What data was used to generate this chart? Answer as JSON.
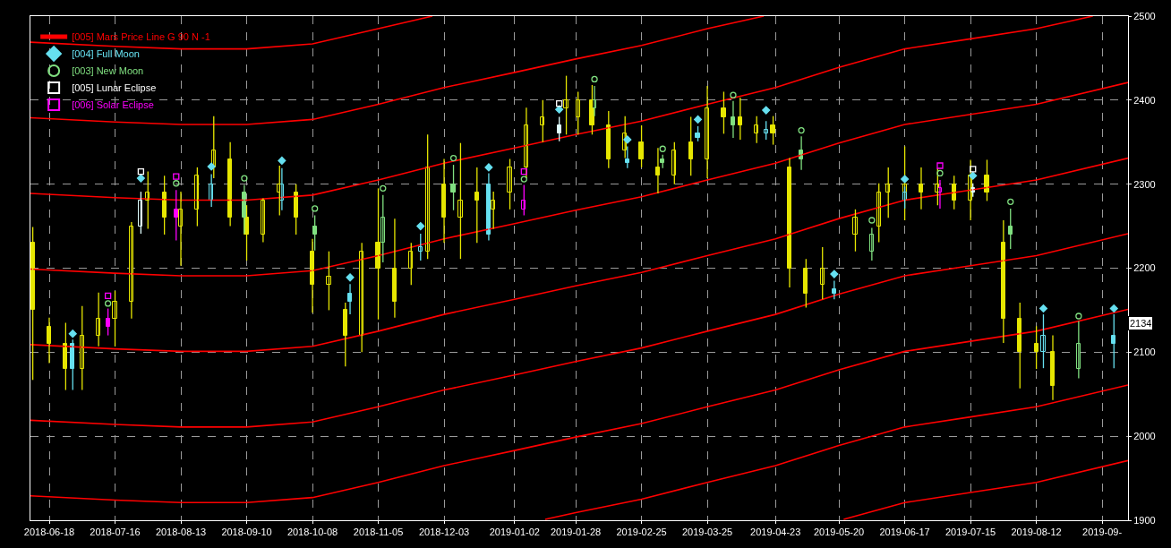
{
  "chart_data": {
    "type": "candlestick",
    "xlim": [
      "2018-06-10",
      "2019-09-20"
    ],
    "xticks": [
      "2018-06-18",
      "2018-07-16",
      "2018-08-13",
      "2018-09-10",
      "2018-10-08",
      "2018-11-05",
      "2018-12-03",
      "2019-01-02",
      "2019-01-28",
      "2019-02-25",
      "2019-03-25",
      "2019-04-23",
      "2019-05-20",
      "2019-06-17",
      "2019-07-15",
      "2019-08-12",
      {
        "value": "2019-09-09",
        "label": "2019-09-"
      }
    ],
    "ylim": [
      1900,
      2500
    ],
    "yticks": [
      1900,
      2000,
      2100,
      2200,
      2300,
      2400,
      2500
    ],
    "grid": true,
    "legend": "top left",
    "annotations": [
      {
        "text": "2134",
        "y": 2134
      }
    ],
    "series": [
      {
        "type": "line",
        "name": "[005] Mars Price Line G 90 N -1",
        "color": "#ff0000",
        "x": [
          "2018-06-10",
          "2018-07-16",
          "2018-08-13",
          "2018-09-10",
          "2018-10-08",
          "2018-11-05",
          "2018-12-03",
          "2019-01-02",
          "2019-01-28",
          "2019-02-25",
          "2019-03-25",
          "2019-04-23",
          "2019-05-20",
          "2019-06-17",
          "2019-07-15",
          "2019-08-12",
          "2019-09-20"
        ],
        "values": [
          2109,
          2104,
          2101,
          2101,
          2107,
          2125,
          2145,
          2163,
          2179,
          2195,
          2215,
          2235,
          2259,
          2281,
          2293,
          2305,
          2331
        ]
      },
      {
        "type": "line",
        "color": "#ff0000",
        "x": [
          "2018-06-10",
          "2018-07-16",
          "2018-08-13",
          "2018-09-10",
          "2018-10-08",
          "2018-11-05",
          "2018-12-03",
          "2019-01-02",
          "2019-01-28",
          "2019-02-25",
          "2019-03-25",
          "2019-04-23",
          "2019-05-20",
          "2019-06-17",
          "2019-07-15",
          "2019-08-12",
          "2019-09-20"
        ],
        "values": [
          2199,
          2194,
          2191,
          2191,
          2197,
          2215,
          2235,
          2253,
          2269,
          2285,
          2305,
          2325,
          2349,
          2371,
          2383,
          2395,
          2421
        ]
      },
      {
        "type": "line",
        "color": "#ff0000",
        "x": [
          "2018-06-10",
          "2018-07-16",
          "2018-08-13",
          "2018-09-10",
          "2018-10-08",
          "2018-11-05",
          "2018-12-03",
          "2019-01-02",
          "2019-01-28",
          "2019-02-25",
          "2019-03-25",
          "2019-04-23",
          "2019-05-20",
          "2019-06-17",
          "2019-07-15",
          "2019-08-12",
          "2019-09-05"
        ],
        "values": [
          2289,
          2284,
          2281,
          2281,
          2287,
          2305,
          2325,
          2343,
          2359,
          2375,
          2395,
          2415,
          2439,
          2461,
          2473,
          2485,
          2500
        ]
      },
      {
        "type": "line",
        "color": "#ff0000",
        "x": [
          "2018-06-10",
          "2018-07-16",
          "2018-08-13",
          "2018-09-10",
          "2018-10-08",
          "2018-11-05",
          "2018-12-03",
          "2019-01-02",
          "2019-01-28",
          "2019-02-25",
          "2019-03-25",
          "2019-04-18"
        ],
        "values": [
          2379,
          2374,
          2371,
          2371,
          2377,
          2395,
          2415,
          2433,
          2449,
          2465,
          2485,
          2500
        ]
      },
      {
        "type": "line",
        "color": "#ff0000",
        "x": [
          "2018-06-10",
          "2018-07-16",
          "2018-08-13",
          "2018-09-10",
          "2018-10-08",
          "2018-11-05",
          "2018-11-28"
        ],
        "values": [
          2469,
          2464,
          2461,
          2461,
          2467,
          2485,
          2500
        ]
      },
      {
        "type": "line",
        "color": "#ff0000",
        "x": [
          "2018-06-10",
          "2018-07-16",
          "2018-08-13",
          "2018-09-10",
          "2018-10-08",
          "2018-11-05",
          "2018-12-03",
          "2019-01-02",
          "2019-01-28",
          "2019-02-25",
          "2019-03-25",
          "2019-04-23",
          "2019-05-20",
          "2019-06-17",
          "2019-07-15",
          "2019-08-12",
          "2019-09-20"
        ],
        "values": [
          2019,
          2014,
          2011,
          2011,
          2017,
          2035,
          2055,
          2073,
          2089,
          2105,
          2125,
          2145,
          2169,
          2191,
          2203,
          2215,
          2241
        ]
      },
      {
        "type": "line",
        "color": "#ff0000",
        "x": [
          "2018-06-10",
          "2018-07-16",
          "2018-08-13",
          "2018-09-10",
          "2018-10-08",
          "2018-11-05",
          "2018-12-03",
          "2019-01-02",
          "2019-01-28",
          "2019-02-25",
          "2019-03-25",
          "2019-04-23",
          "2019-05-20",
          "2019-06-17",
          "2019-07-15",
          "2019-08-12",
          "2019-09-20"
        ],
        "values": [
          1929,
          1924,
          1921,
          1921,
          1927,
          1945,
          1965,
          1983,
          1999,
          2015,
          2035,
          2055,
          2079,
          2101,
          2113,
          2125,
          2151
        ]
      },
      {
        "type": "line",
        "color": "#ff0000",
        "x": [
          "2019-01-15",
          "2019-01-28",
          "2019-02-25",
          "2019-03-25",
          "2019-04-23",
          "2019-05-20",
          "2019-06-17",
          "2019-07-15",
          "2019-08-12",
          "2019-09-20"
        ],
        "values": [
          1901,
          1909,
          1925,
          1945,
          1965,
          1989,
          2011,
          2023,
          2035,
          2061
        ]
      },
      {
        "type": "line",
        "color": "#ff0000",
        "x": [
          "2019-05-22",
          "2019-06-17",
          "2019-07-15",
          "2019-08-12",
          "2019-09-20"
        ],
        "values": [
          1901,
          1921,
          1933,
          1945,
          1971
        ]
      },
      {
        "color": "#e6e600",
        "x": [
          "2018-06-11",
          "2018-06-18",
          "2018-06-25",
          "2018-07-02",
          "2018-07-09",
          "2018-07-16",
          "2018-07-23",
          "2018-07-30",
          "2018-08-06",
          "2018-08-13",
          "2018-08-20",
          "2018-08-27",
          "2018-09-03",
          "2018-09-10",
          "2018-09-17",
          "2018-09-24",
          "2018-10-01",
          "2018-10-08",
          "2018-10-15",
          "2018-10-22",
          "2018-10-29",
          "2018-11-05",
          "2018-11-12",
          "2018-11-19",
          "2018-11-26",
          "2018-12-03",
          "2018-12-10",
          "2018-12-17",
          "2018-12-24",
          "2018-12-31",
          "2019-01-07",
          "2019-01-14",
          "2019-01-24",
          "2019-01-29",
          "2019-02-04",
          "2019-02-11",
          "2019-02-18",
          "2019-02-25",
          "2019-03-04",
          "2019-03-11",
          "2019-03-18",
          "2019-03-25",
          "2019-04-01",
          "2019-04-08",
          "2019-04-15",
          "2019-04-22",
          "2019-04-29",
          "2019-05-06",
          "2019-05-13",
          "2019-05-27",
          "2019-06-06",
          "2019-06-10",
          "2019-06-17",
          "2019-06-24",
          "2019-07-01",
          "2019-07-08",
          "2019-07-15",
          "2019-07-22",
          "2019-07-29",
          "2019-08-05",
          "2019-08-12",
          "2019-08-19"
        ],
        "ohlc": [
          [
            2230,
            2249,
            2067,
            2150
          ],
          [
            2130,
            2141,
            2087,
            2110
          ],
          [
            2110,
            2135,
            2055,
            2080
          ],
          [
            2080,
            2155,
            2055,
            2120
          ],
          [
            2120,
            2171,
            2107,
            2140
          ],
          [
            2140,
            2173,
            2107,
            2160
          ],
          [
            2160,
            2255,
            2140,
            2250
          ],
          [
            2280,
            2315,
            2247,
            2290
          ],
          [
            2290,
            2310,
            2240,
            2260
          ],
          [
            2250,
            2291,
            2203,
            2270
          ],
          [
            2270,
            2320,
            2250,
            2310
          ],
          [
            2320,
            2381,
            2307,
            2340
          ],
          [
            2330,
            2350,
            2250,
            2260
          ],
          [
            2260,
            2275,
            2209,
            2240
          ],
          [
            2240,
            2283,
            2231,
            2280
          ],
          [
            2290,
            2322,
            2263,
            2300
          ],
          [
            2290,
            2300,
            2240,
            2260
          ],
          [
            2220,
            2235,
            2147,
            2180
          ],
          [
            2180,
            2220,
            2150,
            2190
          ],
          [
            2150,
            2159,
            2083,
            2120
          ],
          [
            2120,
            2230,
            2100,
            2220
          ],
          [
            2230,
            2295,
            2139,
            2200
          ],
          [
            2200,
            2259,
            2141,
            2160
          ],
          [
            2200,
            2230,
            2180,
            2220
          ],
          [
            2220,
            2359,
            2211,
            2320
          ],
          [
            2300,
            2330,
            2230,
            2260
          ],
          [
            2260,
            2349,
            2211,
            2280
          ],
          [
            2290,
            2320,
            2230,
            2280
          ],
          [
            2270,
            2291,
            2247,
            2280
          ],
          [
            2290,
            2330,
            2270,
            2320
          ],
          [
            2320,
            2391,
            2307,
            2370
          ],
          [
            2370,
            2400,
            2350,
            2380
          ],
          [
            2390,
            2429,
            2359,
            2400
          ],
          [
            2380,
            2410,
            2359,
            2400
          ],
          [
            2400,
            2418,
            2359,
            2370
          ],
          [
            2370,
            2387,
            2319,
            2330
          ],
          [
            2340,
            2381,
            2331,
            2360
          ],
          [
            2350,
            2370,
            2320,
            2330
          ],
          [
            2320,
            2343,
            2289,
            2310
          ],
          [
            2310,
            2350,
            2300,
            2340
          ],
          [
            2350,
            2380,
            2310,
            2330
          ],
          [
            2330,
            2417,
            2307,
            2390
          ],
          [
            2390,
            2410,
            2360,
            2380
          ],
          [
            2380,
            2403,
            2353,
            2370
          ],
          [
            2360,
            2381,
            2349,
            2370
          ],
          [
            2370,
            2381,
            2347,
            2360
          ],
          [
            2320,
            2331,
            2177,
            2200
          ],
          [
            2200,
            2211,
            2153,
            2170
          ],
          [
            2180,
            2225,
            2163,
            2200
          ],
          [
            2240,
            2270,
            2220,
            2260
          ],
          [
            2250,
            2301,
            2231,
            2290
          ],
          [
            2290,
            2320,
            2260,
            2300
          ],
          [
            2290,
            2345,
            2257,
            2300
          ],
          [
            2300,
            2320,
            2270,
            2290
          ],
          [
            2290,
            2319,
            2275,
            2300
          ],
          [
            2300,
            2310,
            2270,
            2280
          ],
          [
            2280,
            2329,
            2257,
            2310
          ],
          [
            2310,
            2329,
            2280,
            2290
          ],
          [
            2230,
            2257,
            2111,
            2140
          ],
          [
            2140,
            2159,
            2057,
            2100
          ],
          [
            2110,
            2131,
            2080,
            2100
          ],
          [
            2100,
            2120,
            2043,
            2060
          ]
        ]
      },
      {
        "color": "#66e0f0",
        "x": [
          "2018-06-28",
          "2018-08-26",
          "2018-09-25",
          "2018-10-24",
          "2018-11-23",
          "2018-12-22",
          "2019-02-19",
          "2019-03-21",
          "2019-04-19",
          "2019-05-18",
          "2019-06-17",
          "2019-08-15",
          "2019-09-14"
        ],
        "ohlc": [
          [
            2110,
            2115,
            2055,
            2080
          ],
          [
            2280,
            2312,
            2273,
            2300
          ],
          [
            2280,
            2319,
            2269,
            2300
          ],
          [
            2170,
            2181,
            2145,
            2160
          ],
          [
            2220,
            2241,
            2209,
            2225
          ],
          [
            2300,
            2313,
            2233,
            2240
          ],
          [
            2330,
            2345,
            2319,
            2325
          ],
          [
            2360,
            2369,
            2351,
            2355
          ],
          [
            2360,
            2375,
            2353,
            2365
          ],
          [
            2175,
            2185,
            2163,
            2170
          ],
          [
            2280,
            2297,
            2271,
            2290
          ],
          [
            2100,
            2145,
            2081,
            2120
          ],
          [
            2120,
            2145,
            2081,
            2110
          ]
        ]
      },
      {
        "color": "#e0ffff",
        "x": [
          "2018-07-27",
          "2019-01-21",
          "2019-07-16"
        ],
        "ohlc": [
          [
            2250,
            2291,
            2241,
            2280
          ],
          [
            2370,
            2380,
            2351,
            2360
          ],
          [
            2295,
            2301,
            2285,
            2290
          ]
        ]
      },
      {
        "color": "#80e080",
        "x": [
          "2018-09-09",
          "2018-10-09",
          "2018-11-07",
          "2018-12-07",
          "2019-02-05",
          "2019-03-06",
          "2019-04-05",
          "2019-05-04",
          "2019-06-03",
          "2019-08-01",
          "2019-08-30"
        ],
        "ohlc": [
          [
            2290,
            2299,
            2241,
            2260
          ],
          [
            2250,
            2263,
            2221,
            2240
          ],
          [
            2230,
            2287,
            2207,
            2260
          ],
          [
            2300,
            2323,
            2269,
            2290
          ],
          [
            2390,
            2417,
            2381,
            2400
          ],
          [
            2330,
            2335,
            2319,
            2325
          ],
          [
            2380,
            2399,
            2355,
            2370
          ],
          [
            2340,
            2357,
            2317,
            2330
          ],
          [
            2220,
            2248,
            2209,
            2240
          ],
          [
            2250,
            2271,
            2223,
            2240
          ],
          [
            2080,
            2137,
            2069,
            2110
          ]
        ]
      },
      {
        "color": "#ff00ff",
        "x": [
          "2018-07-13",
          "2018-08-11",
          "2019-01-06",
          "2019-07-02"
        ],
        "ohlc": [
          [
            2140,
            2152,
            2120,
            2130
          ],
          [
            2270,
            2293,
            2233,
            2260
          ],
          [
            2270,
            2299,
            2263,
            2280
          ],
          [
            2290,
            2305,
            2271,
            2295
          ]
        ]
      },
      {
        "type": "scatter",
        "name": "[004] Full Moon",
        "color": "#66e0f0",
        "marker": "diamond",
        "x": [
          "2018-06-28",
          "2018-07-27",
          "2018-08-26",
          "2018-09-25",
          "2018-10-24",
          "2018-11-23",
          "2018-12-22",
          "2019-01-21",
          "2019-02-19",
          "2019-03-21",
          "2019-04-19",
          "2019-05-18",
          "2019-06-17",
          "2019-07-16",
          "2019-08-15",
          "2019-09-14"
        ],
        "values": [
          2122,
          2307,
          2321,
          2328,
          2189,
          2250,
          2320,
          2389,
          2353,
          2377,
          2388,
          2193,
          2306,
          2310,
          2152,
          2152
        ]
      },
      {
        "type": "scatter",
        "name": "[003] New Moon",
        "color": "#80e080",
        "marker": "circle",
        "x": [
          "2018-07-13",
          "2018-08-11",
          "2018-09-09",
          "2018-10-09",
          "2018-11-07",
          "2018-12-07",
          "2019-01-06",
          "2019-02-05",
          "2019-03-06",
          "2019-04-05",
          "2019-05-04",
          "2019-06-03",
          "2019-07-02",
          "2019-08-01",
          "2019-08-30"
        ],
        "values": [
          2158,
          2301,
          2307,
          2271,
          2295,
          2331,
          2306,
          2425,
          2342,
          2406,
          2364,
          2257,
          2313,
          2279,
          2143
        ]
      },
      {
        "type": "scatter",
        "name": "[005] Lunar Eclipse",
        "color": "#ffffff",
        "marker": "square",
        "x": [
          "2018-07-27",
          "2019-01-21",
          "2019-07-16"
        ],
        "values": [
          2315,
          2396,
          2318
        ]
      },
      {
        "type": "scatter",
        "name": "[006] Solar Eclipse",
        "color": "#ff00ff",
        "marker": "square",
        "x": [
          "2018-07-13",
          "2018-08-11",
          "2019-01-06",
          "2019-07-02"
        ],
        "values": [
          2167,
          2309,
          2315,
          2322
        ]
      }
    ]
  }
}
